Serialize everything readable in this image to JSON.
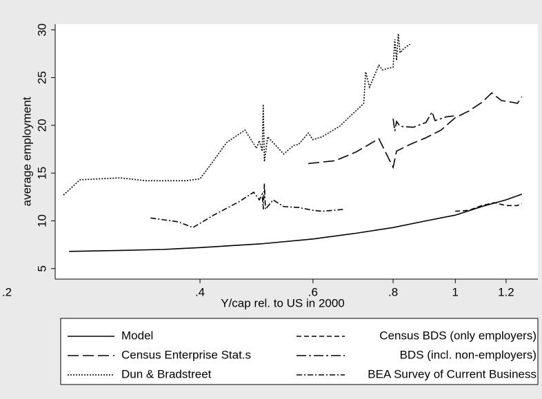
{
  "chart_data": {
    "type": "line",
    "x_label": "Y/cap rel. to US in 2000",
    "y_label": "average employment",
    "xscale": "log",
    "xlim": [
      0.2,
      1.345
    ],
    "ylim": [
      3.9,
      30.6
    ],
    "xticks": [
      {
        "value": 0.2,
        "label": ".2"
      },
      {
        "value": 0.4,
        "label": ".4"
      },
      {
        "value": 0.6,
        "label": ".6"
      },
      {
        "value": 0.8,
        "label": ".8"
      },
      1,
      {
        "value": 1.2,
        "label": "1.2"
      }
    ],
    "yticks": [
      5,
      10,
      15,
      20,
      25,
      30
    ],
    "series": [
      {
        "name": "Model",
        "color": "#000000",
        "dash": "none",
        "x": [
          0.25,
          0.3,
          0.35,
          0.4,
          0.5,
          0.6,
          0.7,
          0.8,
          0.9,
          1.0,
          1.1,
          1.2,
          1.27
        ],
        "values": [
          6.8,
          6.9,
          7.0,
          7.2,
          7.6,
          8.1,
          8.7,
          9.3,
          10.0,
          10.6,
          11.5,
          12.2,
          12.8
        ]
      },
      {
        "name": "Census BDS (only employers)",
        "color": "#000000",
        "dash": "7 4",
        "x": [
          1.0,
          1.05,
          1.1,
          1.15,
          1.2,
          1.25,
          1.27
        ],
        "values": [
          11.0,
          11.1,
          11.6,
          11.9,
          11.6,
          11.6,
          11.8
        ]
      },
      {
        "name": "Census Enterprise Stat.s",
        "color": "#000000",
        "dash": "16 6",
        "x": [
          0.59,
          0.65,
          0.7,
          0.76,
          0.8,
          0.81,
          0.85,
          0.9,
          0.95,
          1.0,
          1.05,
          1.1,
          1.14,
          1.18,
          1.23,
          1.25,
          1.27
        ],
        "values": [
          16.0,
          16.3,
          17.2,
          18.6,
          15.6,
          17.3,
          18.0,
          18.7,
          19.5,
          20.8,
          21.5,
          22.4,
          23.4,
          22.6,
          22.4,
          22.3,
          23.0
        ]
      },
      {
        "name": "BDS (incl. non-employers)",
        "color": "#000000",
        "dash": "14 4 3 4",
        "x": [
          0.8,
          0.805,
          0.81,
          0.82,
          0.86,
          0.9,
          0.92,
          0.93,
          0.97,
          1.0
        ],
        "values": [
          20.7,
          19.4,
          20.4,
          19.9,
          19.8,
          20.3,
          21.4,
          20.5,
          20.9,
          21.0
        ]
      },
      {
        "name": "Dun & Bradstreet",
        "color": "#000000",
        "dash": "2 2",
        "x": [
          0.245,
          0.26,
          0.3,
          0.33,
          0.38,
          0.4,
          0.42,
          0.44,
          0.47,
          0.49,
          0.495,
          0.5,
          0.502,
          0.504,
          0.51,
          0.53,
          0.54,
          0.56,
          0.57,
          0.59,
          0.6,
          0.62,
          0.66,
          0.72,
          0.725,
          0.735,
          0.76,
          0.77,
          0.8,
          0.805,
          0.81,
          0.815,
          0.82,
          0.83,
          0.85
        ],
        "values": [
          12.7,
          14.3,
          14.5,
          14.2,
          14.2,
          14.4,
          16.3,
          18.2,
          19.5,
          17.6,
          18.4,
          17.3,
          22.2,
          16.2,
          18.8,
          17.6,
          17.0,
          17.9,
          18.0,
          19.2,
          18.5,
          18.8,
          19.9,
          22.3,
          25.6,
          24.0,
          26.3,
          25.8,
          26.1,
          29.0,
          26.8,
          29.6,
          27.6,
          28.0,
          28.5
        ]
      },
      {
        "name": "BEA Survey of Current Business",
        "color": "#000000",
        "dash": "8 3 2 3",
        "x": [
          0.335,
          0.37,
          0.39,
          0.42,
          0.46,
          0.485,
          0.495,
          0.5,
          0.502,
          0.504,
          0.506,
          0.52,
          0.54,
          0.57,
          0.6,
          0.62,
          0.67
        ],
        "values": [
          10.3,
          9.9,
          9.3,
          10.6,
          12.0,
          13.0,
          12.2,
          12.8,
          11.2,
          13.9,
          11.2,
          12.2,
          11.5,
          11.4,
          11.1,
          11.0,
          11.2
        ]
      }
    ]
  }
}
